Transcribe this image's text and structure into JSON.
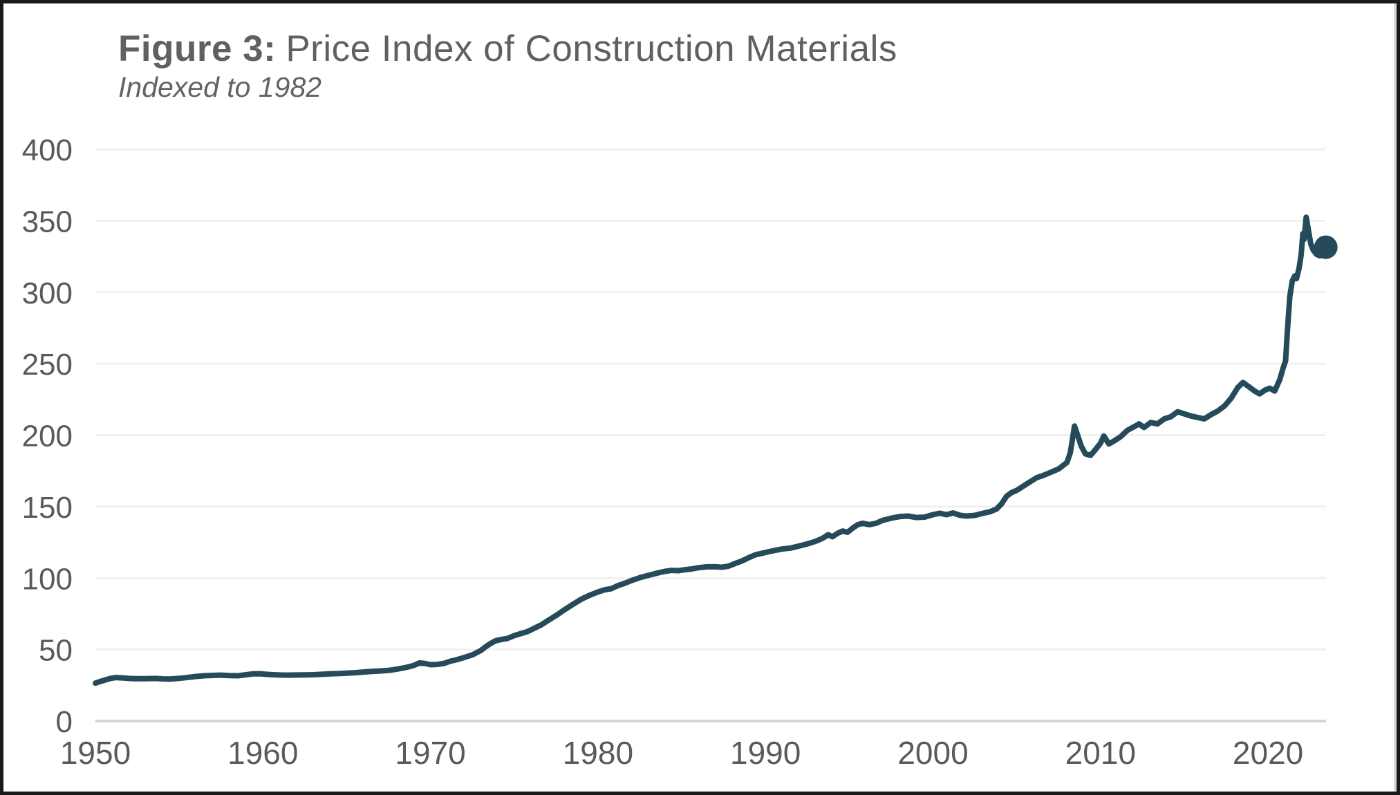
{
  "header": {
    "figure_label": "Figure 3:",
    "title": "Price Index of Construction Materials",
    "subtitle": "Indexed to 1982"
  },
  "colors": {
    "line": "#254b5a",
    "dot": "#254b5a",
    "gridline": "#f1f1f1",
    "zero_axis": "#d5d5d5",
    "text": "#5a5a5a",
    "title_text": "#606060",
    "background": "#ffffff",
    "frame_border": "#1a1a1a"
  },
  "chart_data": {
    "type": "line",
    "title": "Figure 3: Price Index of Construction Materials",
    "subtitle": "Indexed to 1982",
    "xlabel": "",
    "ylabel": "",
    "ylim": [
      0,
      400
    ],
    "x_range": [
      1950,
      2024.6
    ],
    "y_ticks": [
      0,
      50,
      100,
      150,
      200,
      250,
      300,
      350,
      400
    ],
    "x_ticks": [
      1950,
      1960,
      1970,
      1980,
      1990,
      2000,
      2010,
      2020
    ],
    "grid": "horizontal-only",
    "legend": "none",
    "endpoint_dot": {
      "x": 2023.45,
      "y": 331.5
    },
    "series": [
      {
        "name": "Price Index of Construction Materials (1982 = 100)",
        "points": [
          [
            1950.0,
            26.5
          ],
          [
            1950.25,
            27.5
          ],
          [
            1950.6,
            28.8
          ],
          [
            1950.9,
            29.8
          ],
          [
            1951.2,
            30.4
          ],
          [
            1951.6,
            30.2
          ],
          [
            1952.0,
            29.8
          ],
          [
            1952.4,
            29.6
          ],
          [
            1952.8,
            29.6
          ],
          [
            1953.2,
            29.7
          ],
          [
            1953.6,
            29.8
          ],
          [
            1954.0,
            29.5
          ],
          [
            1954.4,
            29.4
          ],
          [
            1954.8,
            29.7
          ],
          [
            1955.2,
            30.1
          ],
          [
            1955.6,
            30.6
          ],
          [
            1956.0,
            31.2
          ],
          [
            1956.5,
            31.7
          ],
          [
            1957.0,
            31.9
          ],
          [
            1957.5,
            32.1
          ],
          [
            1958.0,
            31.8
          ],
          [
            1958.5,
            31.7
          ],
          [
            1959.0,
            32.4
          ],
          [
            1959.4,
            33.0
          ],
          [
            1959.8,
            33.1
          ],
          [
            1960.2,
            32.7
          ],
          [
            1960.6,
            32.4
          ],
          [
            1961.0,
            32.2
          ],
          [
            1961.5,
            32.1
          ],
          [
            1962.0,
            32.2
          ],
          [
            1962.5,
            32.3
          ],
          [
            1963.0,
            32.4
          ],
          [
            1963.5,
            32.7
          ],
          [
            1964.0,
            33.0
          ],
          [
            1964.5,
            33.2
          ],
          [
            1965.0,
            33.5
          ],
          [
            1965.5,
            33.8
          ],
          [
            1966.0,
            34.3
          ],
          [
            1966.5,
            34.7
          ],
          [
            1967.0,
            35.0
          ],
          [
            1967.5,
            35.4
          ],
          [
            1968.0,
            36.3
          ],
          [
            1968.5,
            37.4
          ],
          [
            1969.0,
            38.9
          ],
          [
            1969.35,
            40.7
          ],
          [
            1969.7,
            40.2
          ],
          [
            1970.0,
            39.4
          ],
          [
            1970.4,
            39.6
          ],
          [
            1970.8,
            40.3
          ],
          [
            1971.2,
            41.9
          ],
          [
            1971.6,
            43.0
          ],
          [
            1972.0,
            44.4
          ],
          [
            1972.5,
            46.3
          ],
          [
            1973.0,
            49.3
          ],
          [
            1973.3,
            52.0
          ],
          [
            1973.6,
            54.3
          ],
          [
            1973.9,
            56.2
          ],
          [
            1974.2,
            57.0
          ],
          [
            1974.6,
            57.8
          ],
          [
            1975.0,
            59.8
          ],
          [
            1975.4,
            61.2
          ],
          [
            1975.8,
            62.6
          ],
          [
            1976.2,
            64.9
          ],
          [
            1976.6,
            67.2
          ],
          [
            1977.0,
            70.2
          ],
          [
            1977.5,
            73.8
          ],
          [
            1978.0,
            77.8
          ],
          [
            1978.5,
            81.6
          ],
          [
            1979.0,
            85.2
          ],
          [
            1979.5,
            88.0
          ],
          [
            1980.0,
            90.3
          ],
          [
            1980.4,
            91.8
          ],
          [
            1980.8,
            92.6
          ],
          [
            1981.2,
            94.8
          ],
          [
            1981.6,
            96.4
          ],
          [
            1982.0,
            98.3
          ],
          [
            1982.5,
            100.3
          ],
          [
            1983.0,
            101.9
          ],
          [
            1983.5,
            103.4
          ],
          [
            1984.0,
            104.7
          ],
          [
            1984.4,
            105.4
          ],
          [
            1984.8,
            105.2
          ],
          [
            1985.2,
            105.9
          ],
          [
            1985.6,
            106.4
          ],
          [
            1986.0,
            107.3
          ],
          [
            1986.5,
            107.9
          ],
          [
            1987.0,
            107.9
          ],
          [
            1987.4,
            107.6
          ],
          [
            1987.8,
            108.4
          ],
          [
            1988.2,
            110.3
          ],
          [
            1988.6,
            112.0
          ],
          [
            1989.0,
            114.3
          ],
          [
            1989.4,
            116.3
          ],
          [
            1989.8,
            117.4
          ],
          [
            1990.2,
            118.5
          ],
          [
            1990.6,
            119.4
          ],
          [
            1991.0,
            120.4
          ],
          [
            1991.5,
            121.0
          ],
          [
            1992.0,
            122.4
          ],
          [
            1992.5,
            123.9
          ],
          [
            1993.0,
            125.8
          ],
          [
            1993.4,
            127.8
          ],
          [
            1993.75,
            130.4
          ],
          [
            1994.0,
            128.9
          ],
          [
            1994.3,
            131.3
          ],
          [
            1994.6,
            132.9
          ],
          [
            1994.9,
            132.1
          ],
          [
            1995.2,
            134.9
          ],
          [
            1995.5,
            137.3
          ],
          [
            1995.8,
            138.4
          ],
          [
            1996.2,
            137.4
          ],
          [
            1996.6,
            138.4
          ],
          [
            1997.0,
            140.4
          ],
          [
            1997.5,
            141.9
          ],
          [
            1998.0,
            143.0
          ],
          [
            1998.5,
            143.4
          ],
          [
            1999.0,
            142.4
          ],
          [
            1999.5,
            142.7
          ],
          [
            2000.0,
            144.4
          ],
          [
            2000.4,
            145.4
          ],
          [
            2000.8,
            144.4
          ],
          [
            2001.2,
            145.6
          ],
          [
            2001.6,
            144.0
          ],
          [
            2002.0,
            143.4
          ],
          [
            2002.5,
            143.9
          ],
          [
            2003.0,
            145.4
          ],
          [
            2003.4,
            146.4
          ],
          [
            2003.8,
            148.4
          ],
          [
            2004.1,
            152.0
          ],
          [
            2004.4,
            157.4
          ],
          [
            2004.7,
            159.9
          ],
          [
            2005.0,
            161.4
          ],
          [
            2005.4,
            164.4
          ],
          [
            2005.8,
            167.4
          ],
          [
            2006.2,
            170.3
          ],
          [
            2006.6,
            171.9
          ],
          [
            2007.0,
            173.9
          ],
          [
            2007.5,
            176.4
          ],
          [
            2008.0,
            180.9
          ],
          [
            2008.2,
            187.9
          ],
          [
            2008.45,
            206.4
          ],
          [
            2008.65,
            199.4
          ],
          [
            2008.85,
            192.4
          ],
          [
            2009.1,
            186.9
          ],
          [
            2009.4,
            185.9
          ],
          [
            2009.7,
            189.9
          ],
          [
            2010.0,
            194.4
          ],
          [
            2010.2,
            199.4
          ],
          [
            2010.5,
            193.9
          ],
          [
            2010.8,
            195.9
          ],
          [
            2011.2,
            198.9
          ],
          [
            2011.6,
            203.4
          ],
          [
            2012.0,
            205.9
          ],
          [
            2012.3,
            207.9
          ],
          [
            2012.6,
            205.4
          ],
          [
            2013.0,
            208.9
          ],
          [
            2013.4,
            207.9
          ],
          [
            2013.8,
            211.4
          ],
          [
            2014.2,
            212.9
          ],
          [
            2014.6,
            216.4
          ],
          [
            2015.0,
            214.9
          ],
          [
            2015.4,
            213.4
          ],
          [
            2015.8,
            212.4
          ],
          [
            2016.2,
            211.4
          ],
          [
            2016.6,
            214.4
          ],
          [
            2017.0,
            216.9
          ],
          [
            2017.4,
            220.4
          ],
          [
            2017.8,
            225.9
          ],
          [
            2018.2,
            233.4
          ],
          [
            2018.5,
            236.9
          ],
          [
            2018.8,
            234.4
          ],
          [
            2019.2,
            230.9
          ],
          [
            2019.5,
            228.9
          ],
          [
            2019.8,
            231.4
          ],
          [
            2020.1,
            232.9
          ],
          [
            2020.4,
            230.9
          ],
          [
            2020.7,
            238.9
          ],
          [
            2020.9,
            246.9
          ],
          [
            2021.05,
            252.0
          ],
          [
            2021.15,
            272.0
          ],
          [
            2021.3,
            297.0
          ],
          [
            2021.45,
            308.0
          ],
          [
            2021.6,
            311.5
          ],
          [
            2021.7,
            309.5
          ],
          [
            2021.85,
            316.5
          ],
          [
            2021.98,
            326.5
          ],
          [
            2022.08,
            341.0
          ],
          [
            2022.15,
            337.0
          ],
          [
            2022.28,
            352.5
          ],
          [
            2022.42,
            343.0
          ],
          [
            2022.55,
            334.0
          ],
          [
            2022.7,
            329.5
          ],
          [
            2022.9,
            326.5
          ],
          [
            2023.1,
            325.5
          ],
          [
            2023.3,
            329.0
          ],
          [
            2023.45,
            331.5
          ]
        ]
      }
    ]
  }
}
